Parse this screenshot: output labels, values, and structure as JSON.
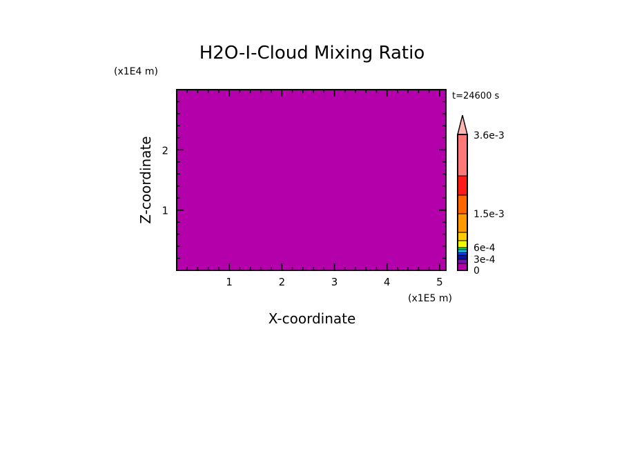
{
  "chart_data": {
    "type": "heatmap",
    "title": "H2O-I-Cloud Mixing Ratio",
    "xlabel": "X-coordinate",
    "ylabel": "Z-coordinate",
    "x_scale_label": "(x1E5 m)",
    "y_scale_label": "(x1E4 m)",
    "time_label": "t=24600 s",
    "xlim": [
      0,
      5.12
    ],
    "ylim": [
      0,
      3.0
    ],
    "x_ticks": [
      "1",
      "2",
      "3",
      "4",
      "5"
    ],
    "y_ticks": [
      "1",
      "2"
    ],
    "field_value": 0,
    "field_color": "#b400aa",
    "colorbar": {
      "colors": [
        "#b400aa",
        "#7a10b4",
        "#0a14a0",
        "#1040ff",
        "#00d0ff",
        "#10e070",
        "#eeff00",
        "#ffcc00",
        "#ff9900",
        "#ff6600",
        "#ff1a1a",
        "#ff7878",
        "#ffb4b4"
      ],
      "labels": [
        {
          "text": "0",
          "value": 0
        },
        {
          "text": "3e-4",
          "value": 0.0003
        },
        {
          "text": "6e-4",
          "value": 0.0006
        },
        {
          "text": "1.5e-3",
          "value": 0.0015
        },
        {
          "text": "3.6e-3",
          "value": 0.0036
        }
      ],
      "extend": "max"
    }
  }
}
